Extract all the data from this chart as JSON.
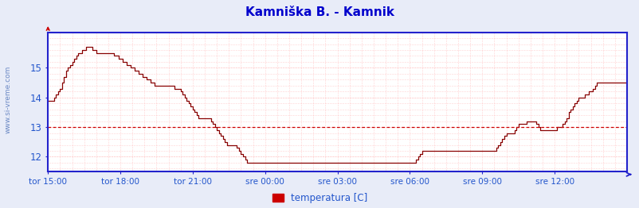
{
  "title": "Kamniška B. - Kamnik",
  "title_color": "#0000cc",
  "bg_color": "#e8ecf8",
  "plot_bg_color": "#ffffff",
  "grid_color_dotted": "#ffaaaa",
  "line_color": "#880000",
  "axis_color": "#2222cc",
  "text_color": "#2255cc",
  "watermark_color": "#5577bb",
  "legend_label": "temperatura [C]",
  "legend_color": "#cc0000",
  "ylim": [
    11.5,
    16.2
  ],
  "yticks": [
    12,
    13,
    14,
    15
  ],
  "avg_line_y": 13.0,
  "avg_line_color": "#cc0000",
  "x_labels": [
    "tor 15:00",
    "tor 18:00",
    "tor 21:00",
    "sre 00:00",
    "sre 03:00",
    "sre 06:00",
    "sre 09:00",
    "sre 12:00"
  ],
  "n_points": 289,
  "temperatures": [
    13.9,
    13.9,
    13.9,
    14.0,
    14.1,
    14.2,
    14.3,
    14.5,
    14.7,
    14.9,
    15.0,
    15.1,
    15.2,
    15.3,
    15.4,
    15.5,
    15.5,
    15.6,
    15.6,
    15.7,
    15.7,
    15.7,
    15.6,
    15.6,
    15.5,
    15.5,
    15.5,
    15.5,
    15.5,
    15.5,
    15.5,
    15.5,
    15.5,
    15.4,
    15.4,
    15.3,
    15.3,
    15.2,
    15.2,
    15.1,
    15.1,
    15.0,
    15.0,
    14.9,
    14.9,
    14.8,
    14.8,
    14.7,
    14.7,
    14.6,
    14.6,
    14.5,
    14.5,
    14.4,
    14.4,
    14.4,
    14.4,
    14.4,
    14.4,
    14.4,
    14.4,
    14.4,
    14.4,
    14.3,
    14.3,
    14.3,
    14.2,
    14.1,
    14.0,
    13.9,
    13.8,
    13.7,
    13.6,
    13.5,
    13.4,
    13.3,
    13.3,
    13.3,
    13.3,
    13.3,
    13.3,
    13.2,
    13.1,
    13.0,
    12.9,
    12.8,
    12.7,
    12.6,
    12.5,
    12.4,
    12.4,
    12.4,
    12.4,
    12.4,
    12.3,
    12.2,
    12.1,
    12.0,
    11.9,
    11.8,
    11.8,
    11.8,
    11.8,
    11.8,
    11.8,
    11.8,
    11.8,
    11.8,
    11.8,
    11.8,
    11.8,
    11.8,
    11.8,
    11.8,
    11.8,
    11.8,
    11.8,
    11.8,
    11.8,
    11.8,
    11.8,
    11.8,
    11.8,
    11.8,
    11.8,
    11.8,
    11.8,
    11.8,
    11.8,
    11.8,
    11.8,
    11.8,
    11.8,
    11.8,
    11.8,
    11.8,
    11.8,
    11.8,
    11.8,
    11.8,
    11.8,
    11.8,
    11.8,
    11.8,
    11.8,
    11.8,
    11.8,
    11.8,
    11.8,
    11.8,
    11.8,
    11.8,
    11.8,
    11.8,
    11.8,
    11.8,
    11.8,
    11.8,
    11.8,
    11.8,
    11.8,
    11.8,
    11.8,
    11.8,
    11.8,
    11.8,
    11.8,
    11.8,
    11.8,
    11.8,
    11.8,
    11.8,
    11.8,
    11.8,
    11.8,
    11.8,
    11.8,
    11.8,
    11.8,
    11.8,
    11.8,
    11.8,
    11.8,
    11.9,
    12.0,
    12.1,
    12.2,
    12.2,
    12.2,
    12.2,
    12.2,
    12.2,
    12.2,
    12.2,
    12.2,
    12.2,
    12.2,
    12.2,
    12.2,
    12.2,
    12.2,
    12.2,
    12.2,
    12.2,
    12.2,
    12.2,
    12.2,
    12.2,
    12.2,
    12.2,
    12.2,
    12.2,
    12.2,
    12.2,
    12.2,
    12.2,
    12.2,
    12.2,
    12.2,
    12.2,
    12.2,
    12.2,
    12.2,
    12.3,
    12.4,
    12.5,
    12.6,
    12.7,
    12.8,
    12.8,
    12.8,
    12.8,
    12.9,
    13.0,
    13.1,
    13.1,
    13.1,
    13.1,
    13.2,
    13.2,
    13.2,
    13.2,
    13.2,
    13.1,
    13.0,
    12.9,
    12.9,
    12.9,
    12.9,
    12.9,
    12.9,
    12.9,
    12.9,
    13.0,
    13.0,
    13.0,
    13.1,
    13.2,
    13.3,
    13.5,
    13.6,
    13.7,
    13.8,
    13.9,
    14.0,
    14.0,
    14.0,
    14.1,
    14.1,
    14.2,
    14.2,
    14.3,
    14.4,
    14.5,
    14.5,
    14.5,
    14.5,
    14.5,
    14.5,
    14.5,
    14.5,
    14.5,
    14.5,
    14.5,
    14.5,
    14.5,
    14.5,
    14.5,
    14.6
  ]
}
